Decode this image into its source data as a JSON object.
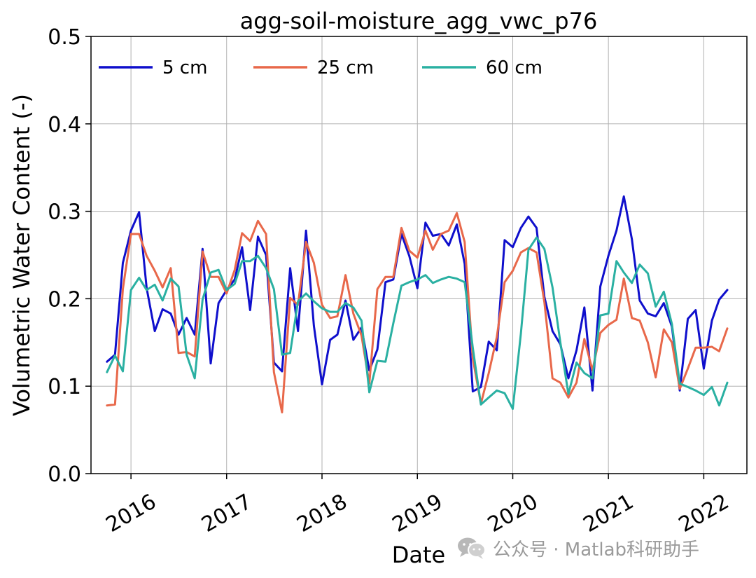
{
  "chart_data": {
    "type": "line",
    "title": "agg-soil-moisture_agg_vwc_p76",
    "xlabel": "Date",
    "ylabel": "Volumetric Water Content (-)",
    "ylim": [
      0.0,
      0.5
    ],
    "yticks": [
      "0.0",
      "0.1",
      "0.2",
      "0.3",
      "0.4",
      "0.5"
    ],
    "xlim": [
      "2015-08-01",
      "2022-06-15"
    ],
    "xticks": [
      {
        "date": "2016-01-01",
        "label": "2016"
      },
      {
        "date": "2017-01-01",
        "label": "2017"
      },
      {
        "date": "2018-01-01",
        "label": "2018"
      },
      {
        "date": "2019-01-01",
        "label": "2019"
      },
      {
        "date": "2020-01-01",
        "label": "2020"
      },
      {
        "date": "2021-01-01",
        "label": "2021"
      },
      {
        "date": "2022-01-01",
        "label": "2022"
      }
    ],
    "grid": true,
    "legend_position": "top",
    "series": [
      {
        "name": "5 cm",
        "color": "#0f0fcc",
        "points": [
          [
            "2015-10-01",
            0.128
          ],
          [
            "2015-11-01",
            0.136
          ],
          [
            "2015-12-01",
            0.241
          ],
          [
            "2016-01-01",
            0.278
          ],
          [
            "2016-02-01",
            0.299
          ],
          [
            "2016-03-01",
            0.212
          ],
          [
            "2016-04-01",
            0.163
          ],
          [
            "2016-05-01",
            0.188
          ],
          [
            "2016-06-01",
            0.183
          ],
          [
            "2016-07-01",
            0.159
          ],
          [
            "2016-08-01",
            0.178
          ],
          [
            "2016-09-01",
            0.159
          ],
          [
            "2016-10-01",
            0.257
          ],
          [
            "2016-11-01",
            0.126
          ],
          [
            "2016-12-01",
            0.195
          ],
          [
            "2017-01-01",
            0.21
          ],
          [
            "2017-02-01",
            0.222
          ],
          [
            "2017-03-01",
            0.259
          ],
          [
            "2017-04-01",
            0.187
          ],
          [
            "2017-05-01",
            0.271
          ],
          [
            "2017-06-01",
            0.25
          ],
          [
            "2017-07-01",
            0.127
          ],
          [
            "2017-08-01",
            0.117
          ],
          [
            "2017-09-01",
            0.235
          ],
          [
            "2017-10-01",
            0.163
          ],
          [
            "2017-11-01",
            0.278
          ],
          [
            "2017-12-01",
            0.169
          ],
          [
            "2018-01-01",
            0.102
          ],
          [
            "2018-02-01",
            0.153
          ],
          [
            "2018-03-01",
            0.159
          ],
          [
            "2018-04-01",
            0.198
          ],
          [
            "2018-05-01",
            0.153
          ],
          [
            "2018-06-01",
            0.167
          ],
          [
            "2018-07-01",
            0.118
          ],
          [
            "2018-08-01",
            0.142
          ],
          [
            "2018-09-01",
            0.219
          ],
          [
            "2018-10-01",
            0.222
          ],
          [
            "2018-11-01",
            0.274
          ],
          [
            "2018-12-01",
            0.249
          ],
          [
            "2019-01-01",
            0.212
          ],
          [
            "2019-02-01",
            0.287
          ],
          [
            "2019-03-01",
            0.272
          ],
          [
            "2019-04-01",
            0.274
          ],
          [
            "2019-05-01",
            0.261
          ],
          [
            "2019-06-01",
            0.285
          ],
          [
            "2019-07-01",
            0.24
          ],
          [
            "2019-08-01",
            0.094
          ],
          [
            "2019-09-01",
            0.099
          ],
          [
            "2019-10-01",
            0.151
          ],
          [
            "2019-11-01",
            0.141
          ],
          [
            "2019-12-01",
            0.267
          ],
          [
            "2020-01-01",
            0.259
          ],
          [
            "2020-02-01",
            0.281
          ],
          [
            "2020-03-01",
            0.294
          ],
          [
            "2020-04-01",
            0.281
          ],
          [
            "2020-05-01",
            0.202
          ],
          [
            "2020-06-01",
            0.163
          ],
          [
            "2020-07-01",
            0.148
          ],
          [
            "2020-08-01",
            0.109
          ],
          [
            "2020-09-01",
            0.141
          ],
          [
            "2020-10-01",
            0.19
          ],
          [
            "2020-11-01",
            0.095
          ],
          [
            "2020-12-01",
            0.214
          ],
          [
            "2021-01-01",
            0.249
          ],
          [
            "2021-02-01",
            0.278
          ],
          [
            "2021-03-01",
            0.317
          ],
          [
            "2021-04-01",
            0.268
          ],
          [
            "2021-05-01",
            0.198
          ],
          [
            "2021-06-01",
            0.183
          ],
          [
            "2021-07-01",
            0.18
          ],
          [
            "2021-08-01",
            0.195
          ],
          [
            "2021-09-01",
            0.168
          ],
          [
            "2021-10-01",
            0.095
          ],
          [
            "2021-11-01",
            0.177
          ],
          [
            "2021-12-01",
            0.187
          ],
          [
            "2022-01-01",
            0.12
          ],
          [
            "2022-02-01",
            0.175
          ],
          [
            "2022-03-01",
            0.199
          ],
          [
            "2022-04-01",
            0.21
          ]
        ]
      },
      {
        "name": "25 cm",
        "color": "#e8684a",
        "points": [
          [
            "2015-10-01",
            0.078
          ],
          [
            "2015-11-01",
            0.079
          ],
          [
            "2015-12-01",
            0.211
          ],
          [
            "2016-01-01",
            0.274
          ],
          [
            "2016-02-01",
            0.274
          ],
          [
            "2016-03-01",
            0.249
          ],
          [
            "2016-04-01",
            0.232
          ],
          [
            "2016-05-01",
            0.213
          ],
          [
            "2016-06-01",
            0.235
          ],
          [
            "2016-07-01",
            0.138
          ],
          [
            "2016-08-01",
            0.139
          ],
          [
            "2016-09-01",
            0.134
          ],
          [
            "2016-10-01",
            0.254
          ],
          [
            "2016-11-01",
            0.225
          ],
          [
            "2016-12-01",
            0.225
          ],
          [
            "2017-01-01",
            0.206
          ],
          [
            "2017-02-01",
            0.233
          ],
          [
            "2017-03-01",
            0.275
          ],
          [
            "2017-04-01",
            0.266
          ],
          [
            "2017-05-01",
            0.289
          ],
          [
            "2017-06-01",
            0.274
          ],
          [
            "2017-07-01",
            0.116
          ],
          [
            "2017-08-01",
            0.07
          ],
          [
            "2017-09-01",
            0.201
          ],
          [
            "2017-10-01",
            0.193
          ],
          [
            "2017-11-01",
            0.265
          ],
          [
            "2017-12-01",
            0.241
          ],
          [
            "2018-01-01",
            0.193
          ],
          [
            "2018-02-01",
            0.178
          ],
          [
            "2018-03-01",
            0.18
          ],
          [
            "2018-04-01",
            0.227
          ],
          [
            "2018-05-01",
            0.183
          ],
          [
            "2018-06-01",
            0.158
          ],
          [
            "2018-07-01",
            0.103
          ],
          [
            "2018-08-01",
            0.211
          ],
          [
            "2018-09-01",
            0.225
          ],
          [
            "2018-10-01",
            0.225
          ],
          [
            "2018-11-01",
            0.281
          ],
          [
            "2018-12-01",
            0.255
          ],
          [
            "2019-01-01",
            0.247
          ],
          [
            "2019-02-01",
            0.278
          ],
          [
            "2019-03-01",
            0.256
          ],
          [
            "2019-04-01",
            0.274
          ],
          [
            "2019-05-01",
            0.278
          ],
          [
            "2019-06-01",
            0.298
          ],
          [
            "2019-07-01",
            0.265
          ],
          [
            "2019-08-01",
            0.132
          ],
          [
            "2019-09-01",
            0.08
          ],
          [
            "2019-10-01",
            0.115
          ],
          [
            "2019-11-01",
            0.156
          ],
          [
            "2019-12-01",
            0.219
          ],
          [
            "2020-01-01",
            0.232
          ],
          [
            "2020-02-01",
            0.253
          ],
          [
            "2020-03-01",
            0.258
          ],
          [
            "2020-04-01",
            0.253
          ],
          [
            "2020-05-01",
            0.196
          ],
          [
            "2020-06-01",
            0.109
          ],
          [
            "2020-07-01",
            0.104
          ],
          [
            "2020-08-01",
            0.087
          ],
          [
            "2020-09-01",
            0.104
          ],
          [
            "2020-10-01",
            0.154
          ],
          [
            "2020-11-01",
            0.118
          ],
          [
            "2020-12-01",
            0.161
          ],
          [
            "2021-01-01",
            0.17
          ],
          [
            "2021-02-01",
            0.176
          ],
          [
            "2021-03-01",
            0.223
          ],
          [
            "2021-04-01",
            0.178
          ],
          [
            "2021-05-01",
            0.175
          ],
          [
            "2021-06-01",
            0.15
          ],
          [
            "2021-07-01",
            0.11
          ],
          [
            "2021-08-01",
            0.165
          ],
          [
            "2021-09-01",
            0.15
          ],
          [
            "2021-10-01",
            0.097
          ],
          [
            "2021-11-01",
            0.12
          ],
          [
            "2021-12-01",
            0.144
          ],
          [
            "2022-01-01",
            0.144
          ],
          [
            "2022-02-01",
            0.145
          ],
          [
            "2022-03-01",
            0.14
          ],
          [
            "2022-04-01",
            0.166
          ]
        ]
      },
      {
        "name": "60 cm",
        "color": "#2ab0a2",
        "points": [
          [
            "2015-10-01",
            0.116
          ],
          [
            "2015-11-01",
            0.135
          ],
          [
            "2015-12-01",
            0.117
          ],
          [
            "2016-01-01",
            0.21
          ],
          [
            "2016-02-01",
            0.224
          ],
          [
            "2016-03-01",
            0.21
          ],
          [
            "2016-04-01",
            0.216
          ],
          [
            "2016-05-01",
            0.198
          ],
          [
            "2016-06-01",
            0.223
          ],
          [
            "2016-07-01",
            0.214
          ],
          [
            "2016-08-01",
            0.136
          ],
          [
            "2016-09-01",
            0.109
          ],
          [
            "2016-10-01",
            0.199
          ],
          [
            "2016-11-01",
            0.23
          ],
          [
            "2016-12-01",
            0.233
          ],
          [
            "2017-01-01",
            0.21
          ],
          [
            "2017-02-01",
            0.217
          ],
          [
            "2017-03-01",
            0.243
          ],
          [
            "2017-04-01",
            0.243
          ],
          [
            "2017-05-01",
            0.249
          ],
          [
            "2017-06-01",
            0.235
          ],
          [
            "2017-07-01",
            0.211
          ],
          [
            "2017-08-01",
            0.136
          ],
          [
            "2017-09-01",
            0.138
          ],
          [
            "2017-10-01",
            0.197
          ],
          [
            "2017-11-01",
            0.206
          ],
          [
            "2017-12-01",
            0.197
          ],
          [
            "2018-01-01",
            0.189
          ],
          [
            "2018-02-01",
            0.185
          ],
          [
            "2018-03-01",
            0.185
          ],
          [
            "2018-04-01",
            0.195
          ],
          [
            "2018-05-01",
            0.19
          ],
          [
            "2018-06-01",
            0.175
          ],
          [
            "2018-07-01",
            0.093
          ],
          [
            "2018-08-01",
            0.129
          ],
          [
            "2018-09-01",
            0.128
          ],
          [
            "2018-10-01",
            0.172
          ],
          [
            "2018-11-01",
            0.215
          ],
          [
            "2018-12-01",
            0.219
          ],
          [
            "2019-01-01",
            0.222
          ],
          [
            "2019-02-01",
            0.227
          ],
          [
            "2019-03-01",
            0.218
          ],
          [
            "2019-04-01",
            0.222
          ],
          [
            "2019-05-01",
            0.225
          ],
          [
            "2019-06-01",
            0.223
          ],
          [
            "2019-07-01",
            0.219
          ],
          [
            "2019-08-01",
            0.144
          ],
          [
            "2019-09-01",
            0.079
          ],
          [
            "2019-10-01",
            0.087
          ],
          [
            "2019-11-01",
            0.095
          ],
          [
            "2019-12-01",
            0.092
          ],
          [
            "2020-01-01",
            0.074
          ],
          [
            "2020-02-01",
            0.16
          ],
          [
            "2020-03-01",
            0.256
          ],
          [
            "2020-04-01",
            0.27
          ],
          [
            "2020-05-01",
            0.257
          ],
          [
            "2020-06-01",
            0.213
          ],
          [
            "2020-07-01",
            0.15
          ],
          [
            "2020-08-01",
            0.091
          ],
          [
            "2020-09-01",
            0.127
          ],
          [
            "2020-10-01",
            0.115
          ],
          [
            "2020-11-01",
            0.109
          ],
          [
            "2020-12-01",
            0.181
          ],
          [
            "2021-01-01",
            0.183
          ],
          [
            "2021-02-01",
            0.243
          ],
          [
            "2021-03-01",
            0.23
          ],
          [
            "2021-04-01",
            0.218
          ],
          [
            "2021-05-01",
            0.239
          ],
          [
            "2021-06-01",
            0.229
          ],
          [
            "2021-07-01",
            0.191
          ],
          [
            "2021-08-01",
            0.208
          ],
          [
            "2021-09-01",
            0.171
          ],
          [
            "2021-10-01",
            0.103
          ],
          [
            "2021-11-01",
            0.099
          ],
          [
            "2021-12-01",
            0.095
          ],
          [
            "2022-01-01",
            0.09
          ],
          [
            "2022-02-01",
            0.099
          ],
          [
            "2022-03-01",
            0.078
          ],
          [
            "2022-04-01",
            0.104
          ]
        ]
      }
    ]
  },
  "watermark": {
    "text": "公众号 · Matlab科研助手",
    "icon": "wechat-icon",
    "color": "#9a9a9a"
  }
}
